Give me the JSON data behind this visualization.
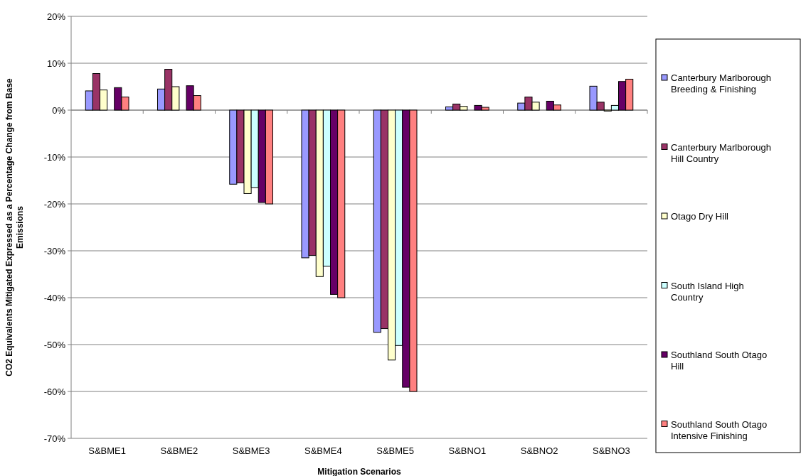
{
  "chart_data": {
    "type": "bar",
    "xlabel": "Mitigation Scenarios",
    "ylabel": "CO2 Equivalents Mitigated Expressed as a Percentage Change from Base Emissions",
    "categories": [
      "S&BME1",
      "S&BME2",
      "S&BME3",
      "S&BME4",
      "S&BME5",
      "S&BNO1",
      "S&BNO2",
      "S&BNO3"
    ],
    "series": [
      {
        "name": "Canterbury Marlborough Breeding & Finishing",
        "color": "#9999ff",
        "values": [
          4.1,
          4.5,
          -15.8,
          -31.5,
          -47.4,
          0.7,
          1.5,
          5.1
        ]
      },
      {
        "name": "Canterbury Marlborough Hill Country",
        "color": "#993366",
        "values": [
          7.8,
          8.7,
          -15.5,
          -31,
          -46.6,
          1.3,
          2.8,
          1.7
        ]
      },
      {
        "name": "Otago Dry Hill",
        "color": "#ffffcc",
        "values": [
          4.3,
          5.0,
          -17.8,
          -35.5,
          -53.3,
          0.8,
          1.7,
          -0.2
        ]
      },
      {
        "name": "South Island High Country",
        "color": "#ccffff",
        "values": [
          null,
          null,
          -16.5,
          -33.3,
          -50.2,
          null,
          null,
          1.0
        ]
      },
      {
        "name": "Southland South Otago Hill",
        "color": "#660066",
        "values": [
          4.8,
          5.2,
          -19.7,
          -39.3,
          -59.1,
          1.0,
          1.9,
          6.1
        ]
      },
      {
        "name": "Southland South Otago Intensive Finishing",
        "color": "#ff8080",
        "values": [
          2.8,
          3.1,
          -20,
          -40,
          -60,
          0.6,
          1.1,
          6.6
        ]
      }
    ],
    "ylim": [
      -70,
      20
    ],
    "yticks": [
      {
        "value": -70,
        "label": "-70%"
      },
      {
        "value": -60,
        "label": "-60%"
      },
      {
        "value": -50,
        "label": "-50%"
      },
      {
        "value": -40,
        "label": "-40%"
      },
      {
        "value": -30,
        "label": "-30%"
      },
      {
        "value": -20,
        "label": "-20%"
      },
      {
        "value": -10,
        "label": "-10%"
      },
      {
        "value": 0,
        "label": "0%"
      },
      {
        "value": 10,
        "label": "10%"
      },
      {
        "value": 20,
        "label": "20%"
      }
    ],
    "grid": "y",
    "legend": "right"
  }
}
